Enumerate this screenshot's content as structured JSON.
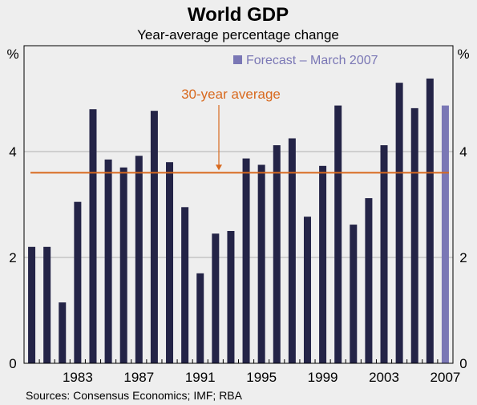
{
  "chart_data": {
    "type": "bar",
    "title": "World GDP",
    "subtitle": "Year-average percentage change",
    "unit_left": "%",
    "unit_right": "%",
    "xlabel": "",
    "ylabel": "",
    "ylim": [
      0,
      6
    ],
    "yticks": [
      0,
      2,
      4
    ],
    "grid": true,
    "x_ticks": [
      "1983",
      "1987",
      "1991",
      "1995",
      "1999",
      "2003",
      "2007"
    ],
    "years": [
      1980,
      1981,
      1982,
      1983,
      1984,
      1985,
      1986,
      1987,
      1988,
      1989,
      1990,
      1991,
      1992,
      1993,
      1994,
      1995,
      1996,
      1997,
      1998,
      1999,
      2000,
      2001,
      2002,
      2003,
      2004,
      2005,
      2006,
      2007
    ],
    "values": [
      2.2,
      2.2,
      1.15,
      3.05,
      4.8,
      3.85,
      3.7,
      3.92,
      4.77,
      3.8,
      2.95,
      1.7,
      2.45,
      2.5,
      3.87,
      3.75,
      4.12,
      4.25,
      2.77,
      3.73,
      4.87,
      2.62,
      3.12,
      4.12,
      5.3,
      4.82,
      5.38,
      4.87
    ],
    "forecast_year": 2007,
    "average": 3.6,
    "average_label": "30-year average",
    "legend": {
      "label": "Forecast – March 2007",
      "placement": "top-right"
    },
    "source": "Sources: Consensus Economics; IMF; RBA",
    "colors": {
      "bar": "#242447",
      "forecast": "#7a77b5",
      "average": "#d8691e",
      "grid": "#b0b0b0",
      "frame": "#000000"
    }
  }
}
